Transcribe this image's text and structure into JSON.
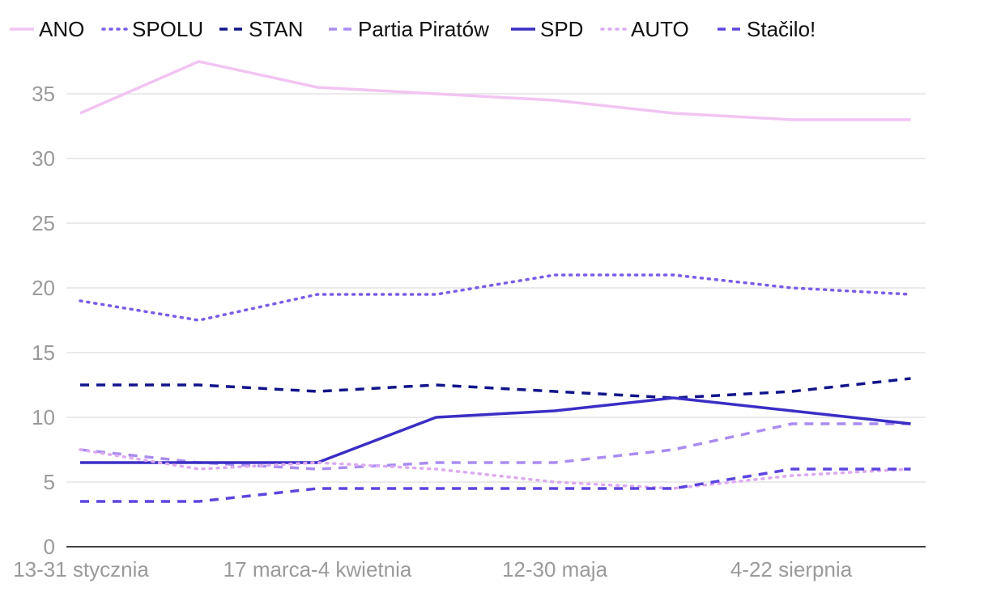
{
  "chart_data": {
    "type": "line",
    "title": "",
    "xlabel": "",
    "ylabel": "",
    "ylim": [
      0,
      37.5
    ],
    "yticks": [
      0,
      5,
      10,
      15,
      20,
      25,
      30,
      35
    ],
    "categories": [
      "13-31 stycznia",
      "",
      "17 marca-4 kwietnia",
      "",
      "12-30 maja",
      "",
      "4-22 sierpnia",
      ""
    ],
    "x_tick_labels": [
      "13-31 stycznia",
      "17 marca-4 kwietnia",
      "12-30 maja",
      "4-22 sierpnia"
    ],
    "legend_position": "top",
    "grid": true,
    "series": [
      {
        "name": "ANO",
        "color": "#f2c4f2",
        "style": "solid",
        "values": [
          33.5,
          37.5,
          35.5,
          35.0,
          34.5,
          33.5,
          33.0,
          33.0
        ]
      },
      {
        "name": "SPOLU",
        "color": "#7b5ce6",
        "style": "dotted",
        "values": [
          19.0,
          17.5,
          19.5,
          19.5,
          21.0,
          21.0,
          20.0,
          19.5
        ]
      },
      {
        "name": "STAN",
        "color": "#12148a",
        "style": "dashed",
        "values": [
          12.5,
          12.5,
          12.0,
          12.5,
          12.0,
          11.5,
          12.0,
          13.0
        ]
      },
      {
        "name": "Partia Piratów",
        "color": "#a98cf0",
        "style": "dashed",
        "values": [
          7.5,
          6.5,
          6.0,
          6.5,
          6.5,
          7.5,
          9.5,
          9.5
        ]
      },
      {
        "name": "SPD",
        "color": "#3b2ec4",
        "style": "solid",
        "values": [
          6.5,
          6.5,
          6.5,
          10.0,
          10.5,
          11.5,
          10.5,
          9.5
        ]
      },
      {
        "name": "AUTO",
        "color": "#dcaaf0",
        "style": "dotted",
        "values": [
          7.5,
          6.0,
          6.5,
          6.0,
          5.0,
          4.5,
          5.5,
          6.0
        ]
      },
      {
        "name": "Stačilo!",
        "color": "#5b45e0",
        "style": "dashed",
        "values": [
          3.5,
          3.5,
          4.5,
          4.5,
          4.5,
          4.5,
          6.0,
          6.0
        ]
      }
    ]
  }
}
